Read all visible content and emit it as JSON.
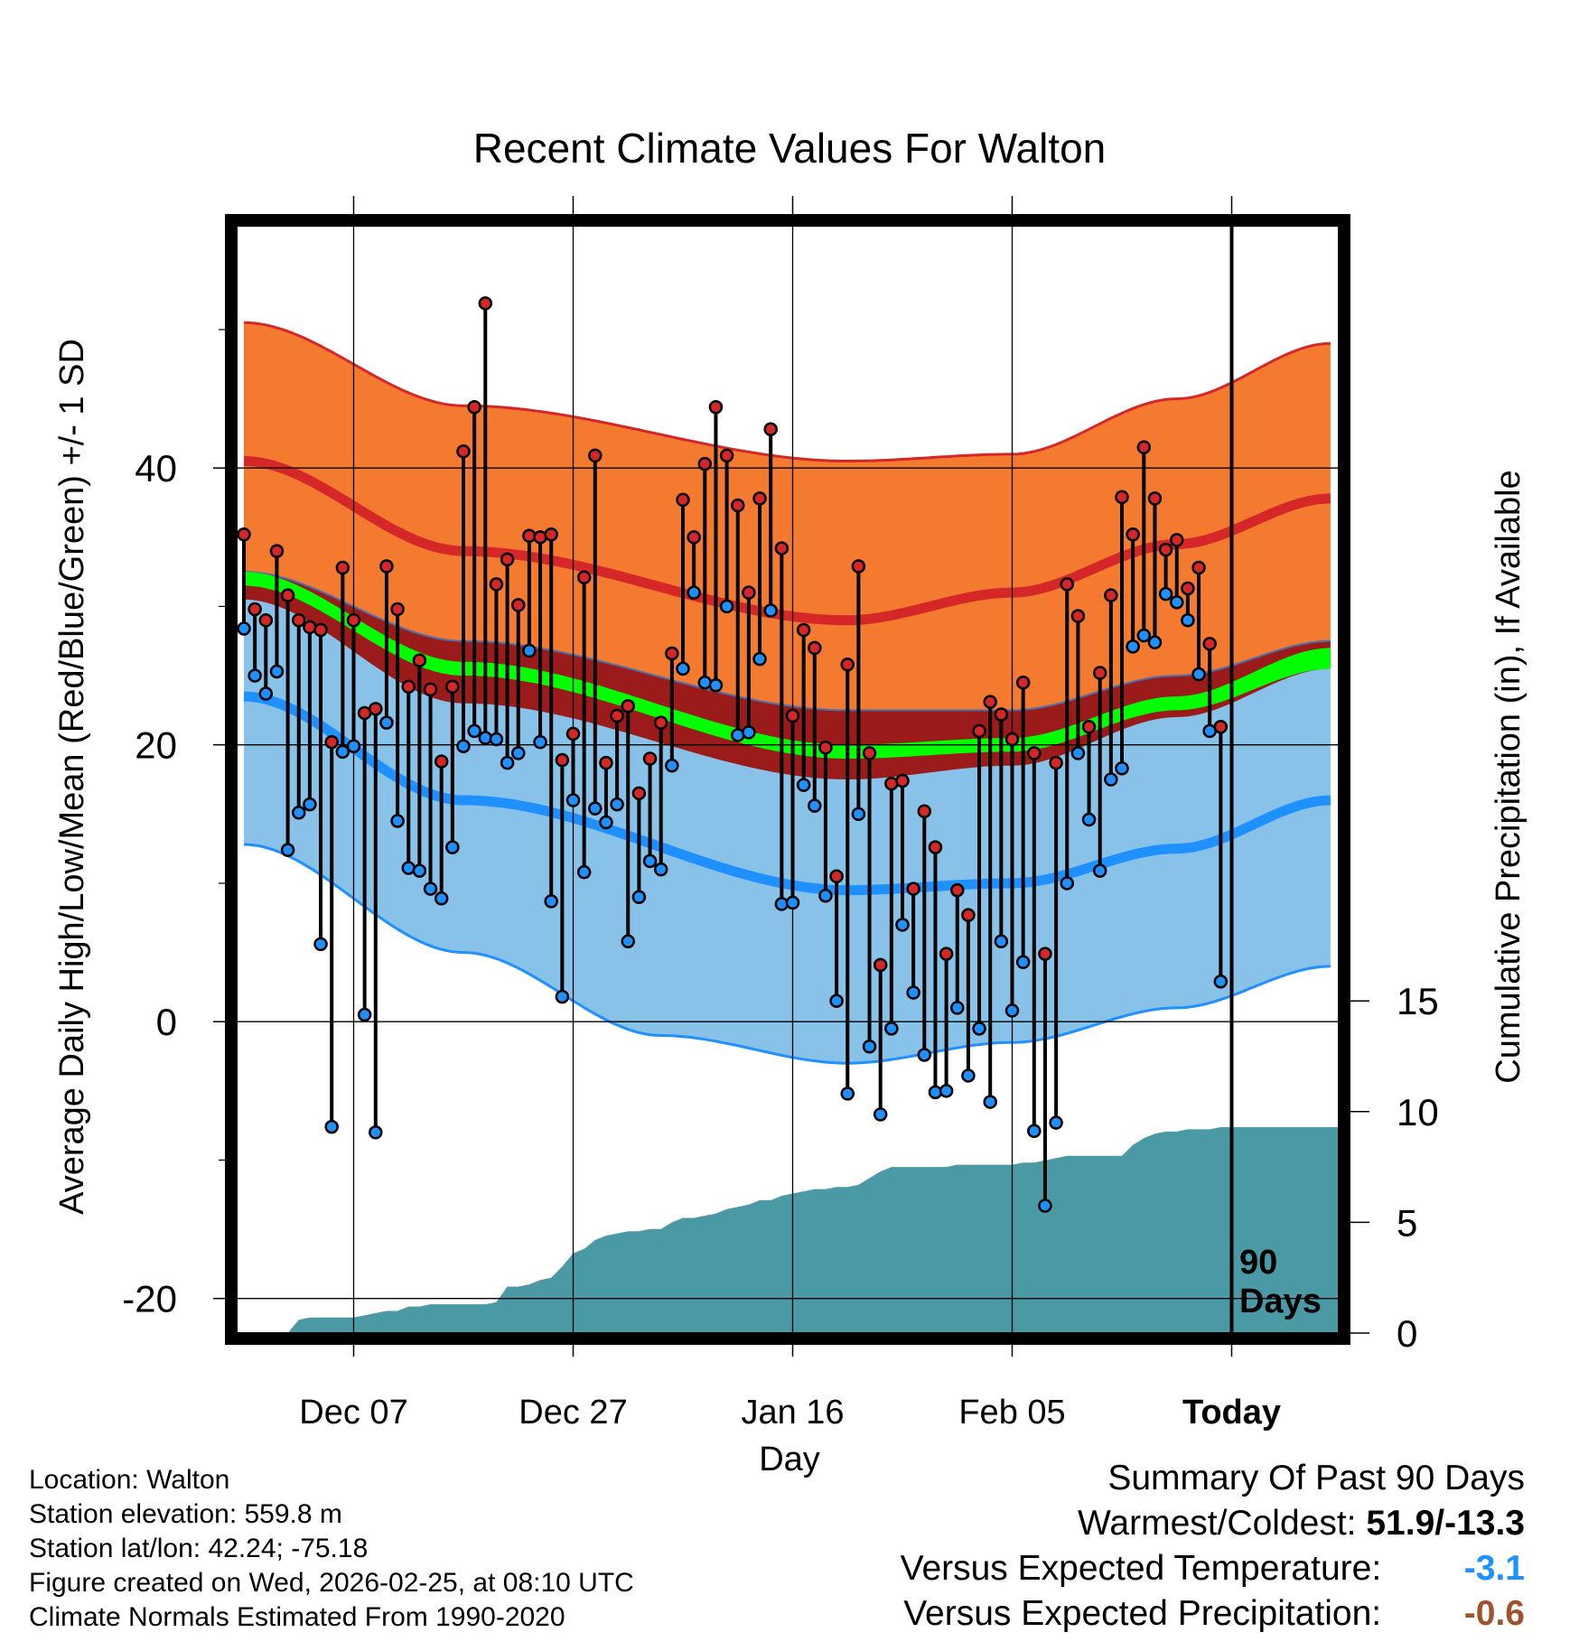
{
  "chart_data": {
    "type": "climate-band",
    "title": "Recent Climate Values For Walton",
    "xlabel": "Day",
    "ylabel_left": "Average Daily High/Low/Mean (Red/Blue/Green) +/- 1 SD",
    "ylabel_right": "Cumulative Precipitation (in), If Available",
    "ylim_left": [
      -22.5,
      57.5
    ],
    "ylim_right": [
      0,
      50
    ],
    "x_ticks": [
      {
        "day": 10,
        "label": "Dec 07"
      },
      {
        "day": 30,
        "label": "Dec 27"
      },
      {
        "day": 50,
        "label": "Jan 16"
      },
      {
        "day": 70,
        "label": "Feb 05"
      },
      {
        "day": 90,
        "label": "Today"
      }
    ],
    "y_ticks_left": [
      -20,
      0,
      20,
      40
    ],
    "y_ticks_right": [
      0,
      5,
      10,
      15
    ],
    "period_label_line1": "90",
    "period_label_line2": "Days",
    "normals": {
      "high_mean_anchors": [
        [
          0,
          40.5
        ],
        [
          20,
          34
        ],
        [
          55,
          29
        ],
        [
          70,
          31
        ],
        [
          85,
          34.5
        ],
        [
          99,
          37.8
        ]
      ],
      "high_sd_upper_anchors": [
        [
          0,
          50.5
        ],
        [
          20,
          44.5
        ],
        [
          55,
          40.5
        ],
        [
          70,
          41
        ],
        [
          85,
          45
        ],
        [
          99,
          49
        ]
      ],
      "low_mean_anchors": [
        [
          0,
          23.5
        ],
        [
          20,
          16
        ],
        [
          55,
          9.5
        ],
        [
          70,
          10
        ],
        [
          85,
          12.5
        ],
        [
          99,
          16
        ]
      ],
      "low_sd_lower_anchors": [
        [
          0,
          12.8
        ],
        [
          20,
          5
        ],
        [
          38,
          -1
        ],
        [
          55,
          -3
        ],
        [
          70,
          -1.5
        ],
        [
          85,
          1
        ],
        [
          99,
          4
        ]
      ],
      "mean_upper_anchors": [
        [
          0,
          32.5
        ],
        [
          20,
          26
        ],
        [
          55,
          20
        ],
        [
          70,
          20.5
        ],
        [
          85,
          23.5
        ],
        [
          99,
          27
        ]
      ],
      "mean_lower_anchors": [
        [
          0,
          31.5
        ],
        [
          20,
          25
        ],
        [
          55,
          19
        ],
        [
          70,
          19.5
        ],
        [
          85,
          22.5
        ],
        [
          99,
          25.5
        ]
      ],
      "mean_sd_upper_anchors": [
        [
          0,
          32.5
        ],
        [
          20,
          27.5
        ],
        [
          55,
          22.5
        ],
        [
          70,
          22.5
        ],
        [
          85,
          25
        ],
        [
          99,
          27.5
        ]
      ],
      "mean_sd_lower_anchors": [
        [
          0,
          30.5
        ],
        [
          20,
          23
        ],
        [
          55,
          17.5
        ],
        [
          70,
          18.5
        ],
        [
          85,
          22
        ],
        [
          99,
          25.5
        ]
      ]
    },
    "daily_highs": [
      35.2,
      29.8,
      29.0,
      34.0,
      30.8,
      29.0,
      28.5,
      28.3,
      20.2,
      32.8,
      29.0,
      22.3,
      22.6,
      32.9,
      29.8,
      24.2,
      26.1,
      24.0,
      18.8,
      24.2,
      41.2,
      44.4,
      51.9,
      31.6,
      33.4,
      30.1,
      35.1,
      35.0,
      35.2,
      18.9,
      20.8,
      32.1,
      40.9,
      18.7,
      22.1,
      22.8,
      16.5,
      19.0,
      21.6,
      26.6,
      37.7,
      35.0,
      40.3,
      44.4,
      40.9,
      37.3,
      31.0,
      37.8,
      42.8,
      34.2,
      22.1,
      28.3,
      27.0,
      19.8,
      10.5,
      25.8,
      32.9,
      19.4,
      4.1,
      17.2,
      17.4,
      9.6,
      15.2,
      12.6,
      4.9,
      9.5,
      7.7,
      21.0,
      23.1,
      22.2,
      20.4,
      24.5,
      19.4,
      4.9,
      18.7,
      31.6,
      29.3,
      21.3,
      25.2,
      30.8,
      37.9,
      35.2,
      41.5,
      37.8,
      34.1,
      34.8,
      31.3,
      32.8,
      27.3,
      21.3
    ],
    "daily_lows": [
      28.4,
      25.0,
      23.7,
      25.3,
      12.4,
      15.1,
      15.7,
      5.6,
      -7.6,
      19.5,
      19.9,
      0.5,
      -8.0,
      21.6,
      14.5,
      11.1,
      10.9,
      9.6,
      8.9,
      12.6,
      19.9,
      21.0,
      20.5,
      20.4,
      18.7,
      19.4,
      26.8,
      20.2,
      8.7,
      1.8,
      16.0,
      10.8,
      15.4,
      14.4,
      15.7,
      5.8,
      9.0,
      11.6,
      11.0,
      18.5,
      25.5,
      31.0,
      24.5,
      24.3,
      30.0,
      20.7,
      20.9,
      26.2,
      29.7,
      8.5,
      8.6,
      17.1,
      15.6,
      9.1,
      1.5,
      -5.2,
      15.0,
      -1.8,
      -6.7,
      -0.5,
      7.0,
      2.1,
      -2.4,
      -5.1,
      -5.0,
      1.0,
      -3.9,
      -0.5,
      -5.8,
      5.8,
      0.8,
      4.3,
      -7.9,
      -13.3,
      -7.3,
      10.0,
      19.4,
      14.6,
      10.9,
      17.5,
      18.3,
      27.1,
      27.9,
      27.4,
      30.9,
      30.3,
      29.0,
      25.1,
      21.0,
      2.9
    ],
    "cumulative_precip": [
      0,
      0,
      0,
      0,
      0,
      0.6,
      0.7,
      0.7,
      0.7,
      0.7,
      0.7,
      0.8,
      0.9,
      1.0,
      1.0,
      1.2,
      1.2,
      1.3,
      1.3,
      1.3,
      1.3,
      1.3,
      1.3,
      1.4,
      2.1,
      2.1,
      2.2,
      2.4,
      2.5,
      3.0,
      3.6,
      3.8,
      4.2,
      4.4,
      4.5,
      4.6,
      4.6,
      4.7,
      4.7,
      5.0,
      5.2,
      5.2,
      5.3,
      5.4,
      5.6,
      5.7,
      5.8,
      6.0,
      6.0,
      6.2,
      6.3,
      6.4,
      6.5,
      6.5,
      6.6,
      6.6,
      6.7,
      7.0,
      7.3,
      7.5,
      7.5,
      7.5,
      7.5,
      7.5,
      7.5,
      7.6,
      7.6,
      7.6,
      7.6,
      7.6,
      7.6,
      7.7,
      7.7,
      7.8,
      7.9,
      8.0,
      8.0,
      8.0,
      8.0,
      8.0,
      8.0,
      8.5,
      8.8,
      9.0,
      9.1,
      9.1,
      9.2,
      9.2,
      9.2,
      9.3,
      9.3
    ],
    "colors": {
      "high_band": "#f47a30",
      "high_line": "#d62728",
      "low_band": "#88c2e8",
      "low_line": "#1e90ff",
      "mean_band": "#9b1b1b",
      "mean_line": "#00ff00",
      "precip": "#4a9aa5",
      "high_marker": "#d62728",
      "low_marker": "#1e90ff"
    }
  },
  "location": {
    "location_line": "Location: Walton",
    "elevation_line": "Station elevation: 559.8 m",
    "latlon_line": "Station lat/lon: 42.24; -75.18",
    "created_line": "Figure created on Wed, 2026-02-25, at 08:10 UTC",
    "normals_line": "Climate Normals Estimated From 1990-2020"
  },
  "summary": {
    "title": "Summary Of Past 90 Days",
    "warmest_coldest_label": "Warmest/Coldest:",
    "warmest_coldest_value": "51.9/-13.3",
    "temp_label": "Versus Expected Temperature:",
    "temp_value": "-3.1",
    "precip_label": "Versus Expected Precipitation:",
    "precip_value": "-0.6"
  }
}
